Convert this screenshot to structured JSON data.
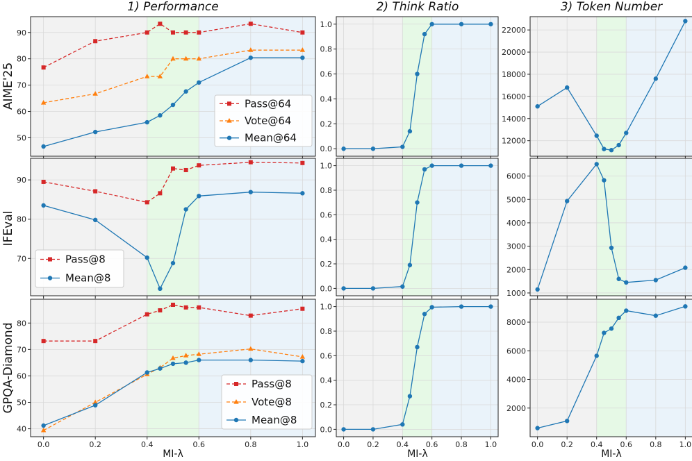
{
  "colors": {
    "pass": "#d62728",
    "vote": "#ff7f0e",
    "mean": "#1f77b4",
    "grey_region": "#f2f2f2",
    "green_region": "#e6f9e6",
    "blue_region": "#eaf3fa"
  },
  "column_titles": [
    "1) Performance",
    "2) Think Ratio",
    "3) Token Number"
  ],
  "row_labels": [
    "AIME'25",
    "IFEval",
    "GPQA-Diamond"
  ],
  "x_axis_label": "MI-λ",
  "chart_data": [
    {
      "type": "line",
      "id": "aime-performance",
      "title": "1) Performance",
      "ylabel": "AIME'25",
      "xlabel": "",
      "x": [
        0.0,
        0.2,
        0.4,
        0.45,
        0.5,
        0.55,
        0.6,
        0.8,
        1.0
      ],
      "xlim": [
        -0.05,
        1.05
      ],
      "ylim": [
        43,
        96
      ],
      "xticks": [
        "0.0",
        "0.2",
        "0.4",
        "0.6",
        "0.8",
        "1.0"
      ],
      "yticks": [
        "50",
        "60",
        "70",
        "80",
        "90"
      ],
      "regions": {
        "green": [
          0.4,
          0.6
        ]
      },
      "legend": "lower-right",
      "series": [
        {
          "name": "Pass@64",
          "style": "pass",
          "values": [
            76.7,
            86.7,
            90.0,
            93.3,
            90.0,
            90.0,
            90.0,
            93.3,
            90.0
          ]
        },
        {
          "name": "Vote@64",
          "style": "vote",
          "values": [
            63.3,
            66.7,
            73.3,
            73.3,
            80.0,
            80.0,
            80.0,
            83.3,
            83.3
          ]
        },
        {
          "name": "Mean@64",
          "style": "mean",
          "values": [
            46.7,
            52.2,
            55.9,
            58.5,
            62.5,
            67.6,
            71.0,
            80.4,
            80.4
          ]
        }
      ]
    },
    {
      "type": "line",
      "id": "aime-think-ratio",
      "title": "2) Think Ratio",
      "ylabel": "",
      "xlabel": "",
      "x": [
        0.0,
        0.2,
        0.4,
        0.45,
        0.5,
        0.55,
        0.6,
        0.8,
        1.0
      ],
      "xlim": [
        -0.05,
        1.05
      ],
      "ylim": [
        -0.06,
        1.06
      ],
      "xticks": [
        "0.0",
        "0.2",
        "0.4",
        "0.6",
        "0.8",
        "1.0"
      ],
      "yticks": [
        "0.0",
        "0.2",
        "0.4",
        "0.6",
        "0.8",
        "1.0"
      ],
      "regions": {
        "green": [
          0.4,
          0.6
        ]
      },
      "series": [
        {
          "name": "Think Ratio",
          "style": "mean",
          "values": [
            0.0,
            0.0,
            0.015,
            0.14,
            0.6,
            0.92,
            1.0,
            1.0,
            1.0
          ]
        }
      ]
    },
    {
      "type": "line",
      "id": "aime-token-number",
      "title": "3) Token Number",
      "ylabel": "",
      "xlabel": "",
      "x": [
        0.0,
        0.2,
        0.4,
        0.45,
        0.5,
        0.55,
        0.6,
        0.8,
        1.0
      ],
      "xlim": [
        -0.05,
        1.05
      ],
      "ylim": [
        10600,
        23200
      ],
      "xticks": [
        "0.0",
        "0.2",
        "0.4",
        "0.6",
        "0.8",
        "1.0"
      ],
      "yticks": [
        "12000",
        "14000",
        "16000",
        "18000",
        "20000",
        "22000"
      ],
      "regions": {
        "green": [
          0.4,
          0.6
        ]
      },
      "series": [
        {
          "name": "Token Number",
          "style": "mean",
          "values": [
            15100,
            16800,
            12450,
            11250,
            11150,
            11600,
            12700,
            17600,
            22800
          ]
        }
      ]
    },
    {
      "type": "line",
      "id": "ifeval-performance",
      "title": "",
      "ylabel": "IFEval",
      "xlabel": "",
      "x": [
        0.0,
        0.2,
        0.4,
        0.45,
        0.5,
        0.55,
        0.6,
        0.8,
        1.0
      ],
      "xlim": [
        -0.05,
        1.05
      ],
      "ylim": [
        60.5,
        95.5
      ],
      "xticks": [
        "0.0",
        "0.2",
        "0.4",
        "0.6",
        "0.8",
        "1.0"
      ],
      "yticks": [
        "70",
        "80",
        "90"
      ],
      "regions": {
        "green": [
          0.4,
          0.6
        ]
      },
      "legend": "lower-left",
      "series": [
        {
          "name": "Pass@8",
          "style": "pass",
          "values": [
            89.5,
            87.1,
            84.3,
            86.6,
            92.9,
            92.5,
            93.7,
            94.5,
            94.3
          ]
        },
        {
          "name": "Mean@8",
          "style": "mean",
          "values": [
            83.5,
            79.8,
            70.2,
            62.3,
            68.8,
            82.5,
            85.9,
            86.9,
            86.6
          ]
        }
      ]
    },
    {
      "type": "line",
      "id": "ifeval-think-ratio",
      "title": "",
      "ylabel": "",
      "xlabel": "",
      "x": [
        0.0,
        0.2,
        0.4,
        0.45,
        0.5,
        0.55,
        0.6,
        0.8,
        1.0
      ],
      "xlim": [
        -0.05,
        1.05
      ],
      "ylim": [
        -0.06,
        1.06
      ],
      "xticks": [
        "0.0",
        "0.2",
        "0.4",
        "0.6",
        "0.8",
        "1.0"
      ],
      "yticks": [
        "0.0",
        "0.2",
        "0.4",
        "0.6",
        "0.8",
        "1.0"
      ],
      "regions": {
        "green": [
          0.4,
          0.6
        ]
      },
      "series": [
        {
          "name": "Think Ratio",
          "style": "mean",
          "values": [
            0.0,
            0.0,
            0.015,
            0.19,
            0.7,
            0.97,
            1.0,
            1.0,
            1.0
          ]
        }
      ]
    },
    {
      "type": "line",
      "id": "ifeval-token-number",
      "title": "",
      "ylabel": "",
      "xlabel": "",
      "x": [
        0.0,
        0.2,
        0.4,
        0.45,
        0.5,
        0.55,
        0.6,
        0.8,
        1.0
      ],
      "xlim": [
        -0.05,
        1.05
      ],
      "ylim": [
        880,
        6760
      ],
      "xticks": [
        "0.0",
        "0.2",
        "0.4",
        "0.6",
        "0.8",
        "1.0"
      ],
      "yticks": [
        "1000",
        "2000",
        "3000",
        "4000",
        "5000",
        "6000"
      ],
      "regions": {
        "green": [
          0.4,
          0.6
        ]
      },
      "series": [
        {
          "name": "Token Number",
          "style": "mean",
          "values": [
            1150,
            4930,
            6510,
            5820,
            2930,
            1600,
            1450,
            1550,
            2080
          ]
        }
      ]
    },
    {
      "type": "line",
      "id": "gpqa-performance",
      "title": "",
      "ylabel": "GPQA-Diamond",
      "xlabel": "MI-λ",
      "x": [
        0.0,
        0.2,
        0.4,
        0.45,
        0.5,
        0.55,
        0.6,
        0.8,
        1.0
      ],
      "xlim": [
        -0.05,
        1.05
      ],
      "ylim": [
        37,
        89
      ],
      "xticks": [
        "0.0",
        "0.2",
        "0.4",
        "0.6",
        "0.8",
        "1.0"
      ],
      "yticks": [
        "40",
        "50",
        "60",
        "70",
        "80"
      ],
      "regions": {
        "green": [
          0.4,
          0.6
        ]
      },
      "legend": "lower-right",
      "series": [
        {
          "name": "Pass@8",
          "style": "pass",
          "values": [
            73.2,
            73.2,
            83.3,
            84.8,
            86.9,
            85.9,
            85.9,
            82.8,
            85.4
          ]
        },
        {
          "name": "Vote@8",
          "style": "vote",
          "values": [
            39.4,
            50.0,
            60.6,
            63.1,
            66.7,
            67.7,
            68.2,
            70.2,
            67.2
          ]
        },
        {
          "name": "Mean@8",
          "style": "mean",
          "values": [
            41.2,
            48.9,
            61.3,
            62.8,
            64.6,
            65.0,
            66.0,
            66.0,
            65.6
          ]
        }
      ]
    },
    {
      "type": "line",
      "id": "gpqa-think-ratio",
      "title": "",
      "ylabel": "",
      "xlabel": "MI-λ",
      "x": [
        0.0,
        0.2,
        0.4,
        0.45,
        0.5,
        0.55,
        0.6,
        0.8,
        1.0
      ],
      "xlim": [
        -0.05,
        1.05
      ],
      "ylim": [
        -0.06,
        1.06
      ],
      "xticks": [
        "0.0",
        "0.2",
        "0.4",
        "0.6",
        "0.8",
        "1.0"
      ],
      "yticks": [
        "0.0",
        "0.2",
        "0.4",
        "0.6",
        "0.8",
        "1.0"
      ],
      "regions": {
        "green": [
          0.4,
          0.6
        ]
      },
      "series": [
        {
          "name": "Think Ratio",
          "style": "mean",
          "values": [
            0.0,
            0.0,
            0.04,
            0.27,
            0.67,
            0.94,
            0.995,
            1.0,
            1.0
          ]
        }
      ]
    },
    {
      "type": "line",
      "id": "gpqa-token-number",
      "title": "",
      "ylabel": "",
      "xlabel": "MI-λ",
      "x": [
        0.0,
        0.2,
        0.4,
        0.45,
        0.5,
        0.55,
        0.6,
        0.8,
        1.0
      ],
      "xlim": [
        -0.05,
        1.05
      ],
      "ylim": [
        0,
        9600
      ],
      "xticks": [
        "0.0",
        "0.2",
        "0.4",
        "0.6",
        "0.8",
        "1.0"
      ],
      "yticks": [
        "2000",
        "4000",
        "6000",
        "8000"
      ],
      "regions": {
        "green": [
          0.4,
          0.6
        ]
      },
      "series": [
        {
          "name": "Token Number",
          "style": "mean",
          "values": [
            600,
            1100,
            5650,
            7250,
            7550,
            8300,
            8800,
            8450,
            9100
          ]
        }
      ]
    }
  ]
}
